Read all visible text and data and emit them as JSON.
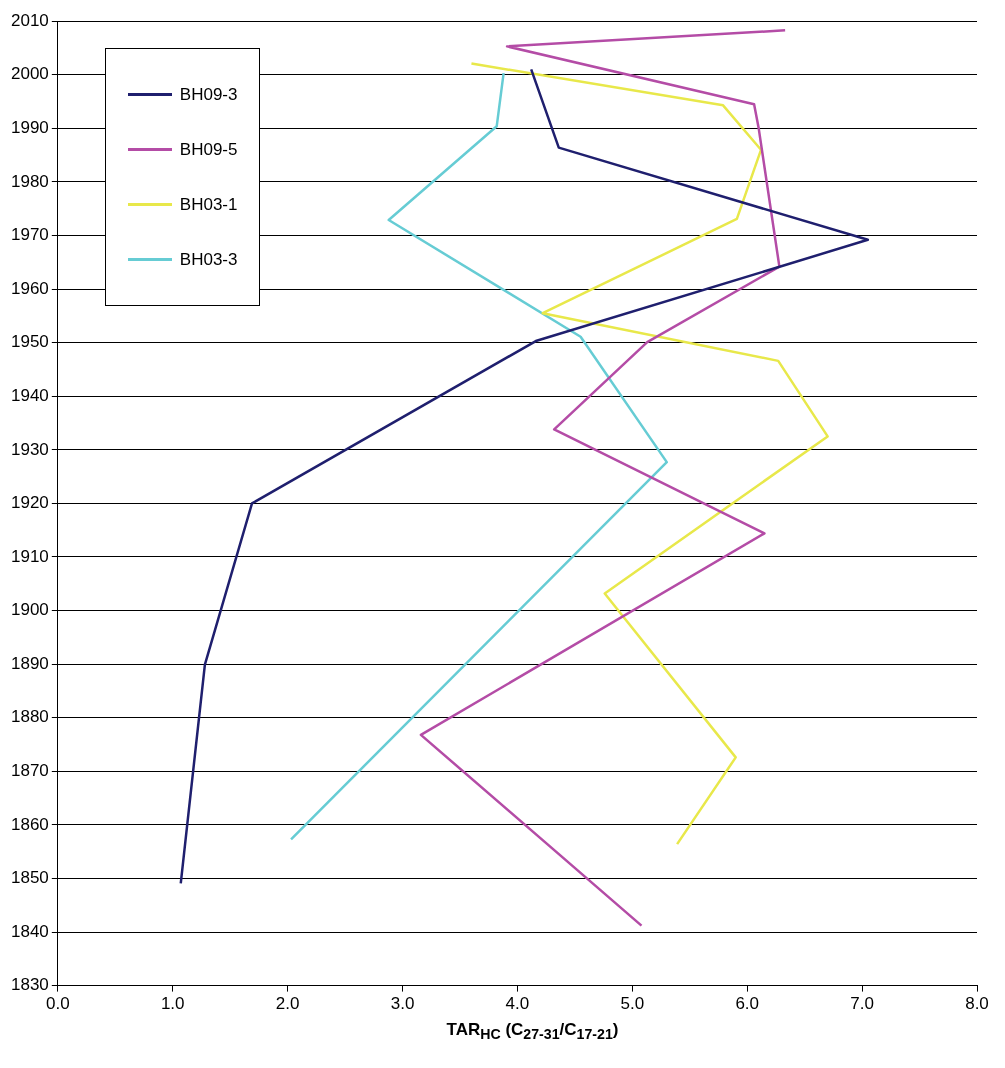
{
  "chart_data": {
    "type": "line",
    "xlabel": "TAR$_{HC}$ (C$_{27-31}$/C$_{17-21}$)",
    "xlim": [
      0,
      8
    ],
    "xticks": [
      {
        "value": 0,
        "label": "0.0"
      },
      {
        "value": 1,
        "label": "1.0"
      },
      {
        "value": 2,
        "label": "2.0"
      },
      {
        "value": 3,
        "label": "3.0"
      },
      {
        "value": 4,
        "label": "4.0"
      },
      {
        "value": 5,
        "label": "5.0"
      },
      {
        "value": 6,
        "label": "6.0"
      },
      {
        "value": 7,
        "label": "7.0"
      },
      {
        "value": 8,
        "label": "8.0"
      }
    ],
    "ylim": [
      1830,
      2010
    ],
    "yticks": [
      1830,
      1840,
      1850,
      1860,
      1870,
      1880,
      1890,
      1900,
      1910,
      1920,
      1930,
      1940,
      1950,
      1960,
      1970,
      1980,
      1990,
      2000,
      2010
    ],
    "grid": "y",
    "legend": "top left",
    "marker": "none",
    "line_style": "solid",
    "series": [
      {
        "name": "BH09-3",
        "color": "#1f1f6e",
        "x": [
          4.12,
          4.36,
          7.05,
          4.16,
          1.69,
          1.28,
          1.07
        ],
        "values": [
          2001,
          1986.4,
          1969.2,
          1950.3,
          1920,
          1889.9,
          1849.1
        ]
      },
      {
        "name": "BH09-5",
        "color": "#b44ca6",
        "x": [
          6.33,
          3.91,
          6.06,
          6.1,
          6.28,
          5.13,
          4.32,
          6.15,
          3.16,
          5.08
        ],
        "values": [
          2008.3,
          2005.3,
          1994.5,
          1990,
          1964.2,
          1950.1,
          1933.8,
          1914.4,
          1876.8,
          1841.2
        ]
      },
      {
        "name": "BH03-1",
        "color": "#e8e84a",
        "x": [
          3.6,
          5.79,
          6.12,
          5.91,
          4.22,
          6.27,
          6.7,
          4.76,
          5.9,
          5.39
        ],
        "values": [
          2002.1,
          1994.3,
          1986,
          1973.1,
          1955.5,
          1946.6,
          1932.5,
          1903.2,
          1872.6,
          1856.4
        ]
      },
      {
        "name": "BH03-3",
        "color": "#66ccd4",
        "x": [
          3.88,
          3.82,
          2.88,
          4.55,
          5.3,
          2.03
        ],
        "values": [
          2000.3,
          1990.4,
          1972.9,
          1951.1,
          1927.7,
          1857.3
        ]
      }
    ]
  }
}
